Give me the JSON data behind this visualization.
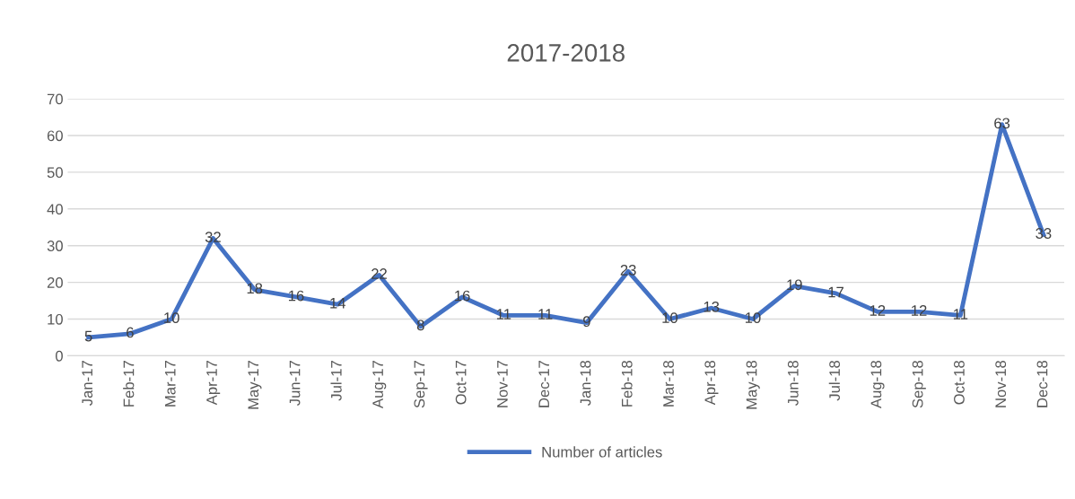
{
  "chart_data": {
    "type": "line",
    "title": "2017-2018",
    "categories": [
      "Jan-17",
      "Feb-17",
      "Mar-17",
      "Apr-17",
      "May-17",
      "Jun-17",
      "Jul-17",
      "Aug-17",
      "Sep-17",
      "Oct-17",
      "Nov-17",
      "Dec-17",
      "Jan-18",
      "Feb-18",
      "Mar-18",
      "Apr-18",
      "May-18",
      "Jun-18",
      "Jul-18",
      "Aug-18",
      "Sep-18",
      "Oct-18",
      "Nov-18",
      "Dec-18"
    ],
    "series": [
      {
        "name": "Number of articles",
        "color": "#4472c4",
        "values": [
          5,
          6,
          10,
          32,
          18,
          16,
          14,
          22,
          8,
          16,
          11,
          11,
          9,
          23,
          10,
          13,
          10,
          19,
          17,
          12,
          12,
          11,
          63,
          33
        ]
      }
    ],
    "ylim": [
      0,
      70
    ],
    "yticks": [
      0,
      10,
      20,
      30,
      40,
      50,
      60,
      70
    ],
    "grid": "y",
    "legend": "bottom",
    "data_labels": true,
    "marker": "none",
    "line_style": "solid"
  }
}
